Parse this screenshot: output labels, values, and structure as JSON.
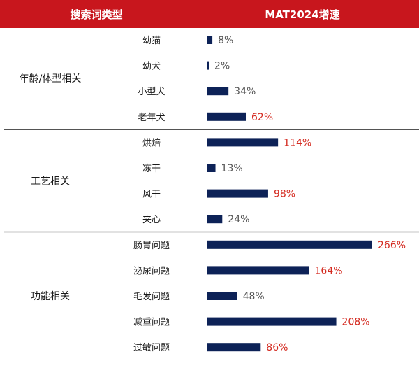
{
  "header": {
    "col1": "搜索词类型",
    "col2": "MAT2024增速"
  },
  "colors": {
    "header_bg": "#c8161d",
    "bar": "#0d2257",
    "label_normal": "#555555",
    "label_highlight": "#d42a20",
    "divider": "#1a1a1a"
  },
  "chart_data": {
    "type": "bar",
    "orientation": "horizontal",
    "title": "",
    "xlabel": "MAT2024增速",
    "ylabel": "搜索词类型",
    "xlim": [
      0,
      266
    ],
    "unit": "%",
    "groups": [
      {
        "name": "年龄/体型相关",
        "categories": [
          "幼猫",
          "幼犬",
          "小型犬",
          "老年犬"
        ],
        "values": [
          8,
          2,
          34,
          62
        ],
        "highlight": [
          false,
          false,
          false,
          true
        ]
      },
      {
        "name": "工艺相关",
        "categories": [
          "烘焙",
          "冻干",
          "风干",
          "夹心"
        ],
        "values": [
          114,
          13,
          98,
          24
        ],
        "highlight": [
          true,
          false,
          true,
          false
        ]
      },
      {
        "name": "功能相关",
        "categories": [
          "肠胃问题",
          "泌尿问题",
          "毛发问题",
          "减重问题",
          "过敏问题"
        ],
        "values": [
          266,
          164,
          48,
          208,
          86
        ],
        "highlight": [
          true,
          true,
          false,
          true,
          true
        ]
      }
    ],
    "value_labels": [
      [
        "8%",
        "2%",
        "34%",
        "62%"
      ],
      [
        "114%",
        "13%",
        "98%",
        "24%"
      ],
      [
        "266%",
        "164%",
        "48%",
        "208%",
        "86%"
      ]
    ]
  }
}
